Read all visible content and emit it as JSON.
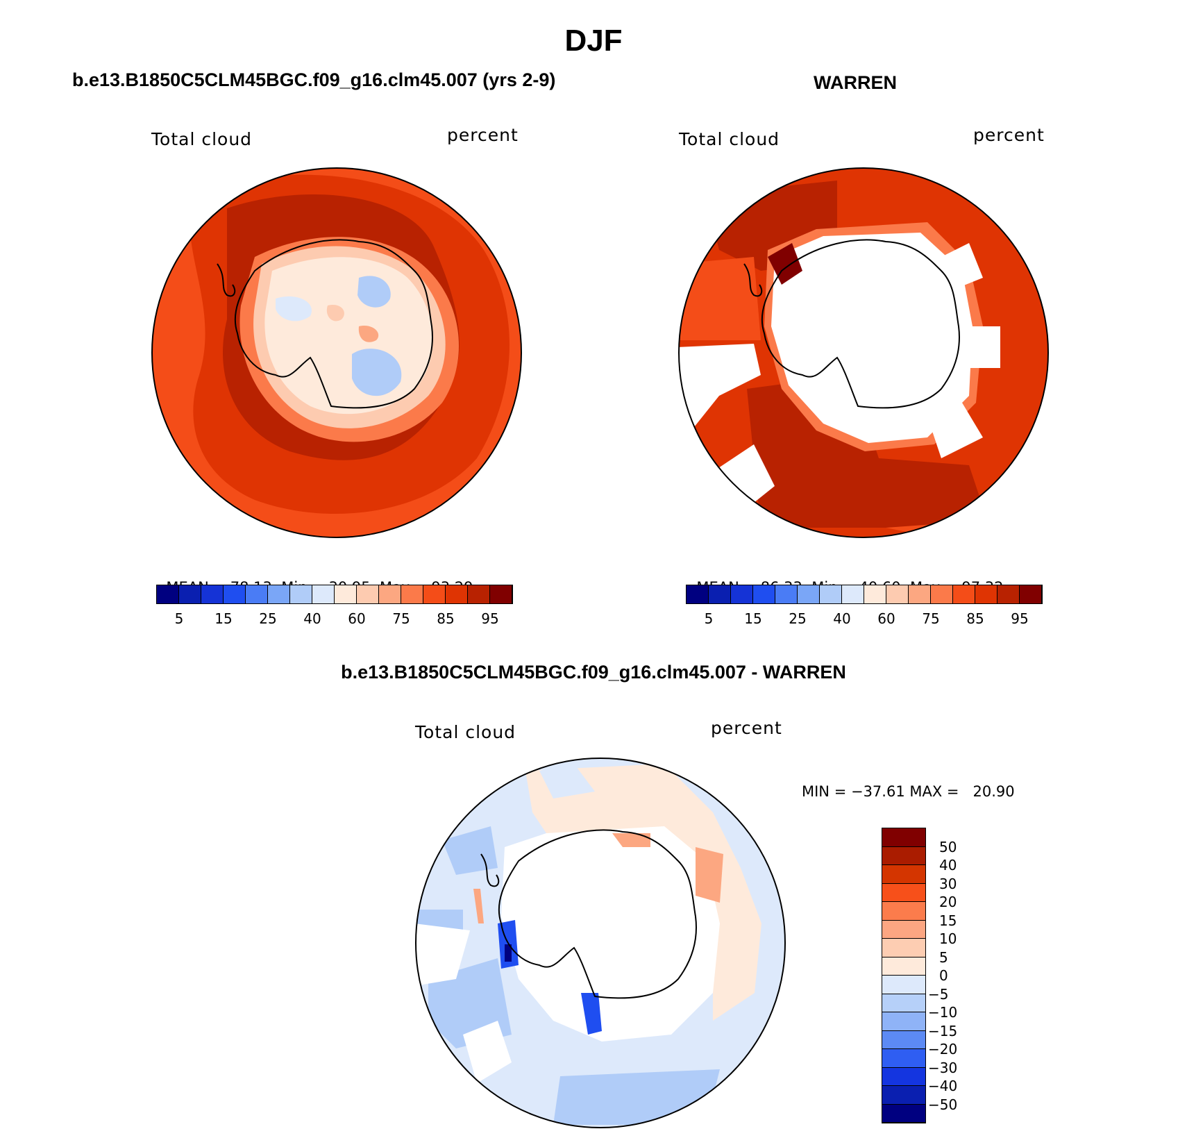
{
  "page": {
    "title": "DJF"
  },
  "panels": [
    {
      "heading": "b.e13.B1850C5CLM45BGC.f09_g16.clm45.007 (yrs 2-9)",
      "field_label": "Total cloud",
      "units_label": "percent",
      "stats": {
        "mean_label": "MEAN=",
        "mean": "78.13",
        "min_label": "Min=",
        "min": "30.95",
        "max_label": "Max=",
        "max": "93.29"
      }
    },
    {
      "heading": "WARREN",
      "field_label": "Total cloud",
      "units_label": "percent",
      "stats": {
        "mean_label": "MEAN=",
        "mean": "86.33",
        "min_label": "Min=",
        "min": "40.60",
        "max_label": "Max=",
        "max": "97.32"
      }
    },
    {
      "heading": "b.e13.B1850C5CLM45BGC.f09_g16.clm45.007 - WARREN",
      "field_label": "Total cloud",
      "units_label": "percent",
      "stats": {
        "text": "MIN = −37.61 MAX =   20.90"
      }
    }
  ],
  "colorbar_abs": {
    "colors": [
      "#000080",
      "#0a1fb0",
      "#1533d6",
      "#1f4ef0",
      "#4a7cf5",
      "#7aa6f7",
      "#b0ccf8",
      "#dde9fb",
      "#feeadb",
      "#fdcbb0",
      "#fca781",
      "#fb7a4a",
      "#f44d18",
      "#df3403",
      "#b82201",
      "#800000"
    ],
    "tick_labels": [
      "5",
      "15",
      "25",
      "40",
      "60",
      "75",
      "85",
      "95"
    ]
  },
  "colorbar_diff": {
    "colors": [
      "#800000",
      "#aa1c00",
      "#d43500",
      "#f7501a",
      "#fb7c4c",
      "#fca682",
      "#fdcdb2",
      "#feeadb",
      "#dde9fb",
      "#b6d0f9",
      "#8fb3f7",
      "#5c8af4",
      "#2f5ef2",
      "#1435e0",
      "#0a1fb0",
      "#000080"
    ],
    "tick_labels": [
      "50",
      "40",
      "30",
      "20",
      "15",
      "10",
      "5",
      "0",
      "−5",
      "−10",
      "−15",
      "−20",
      "−30",
      "−40",
      "−50"
    ]
  }
}
